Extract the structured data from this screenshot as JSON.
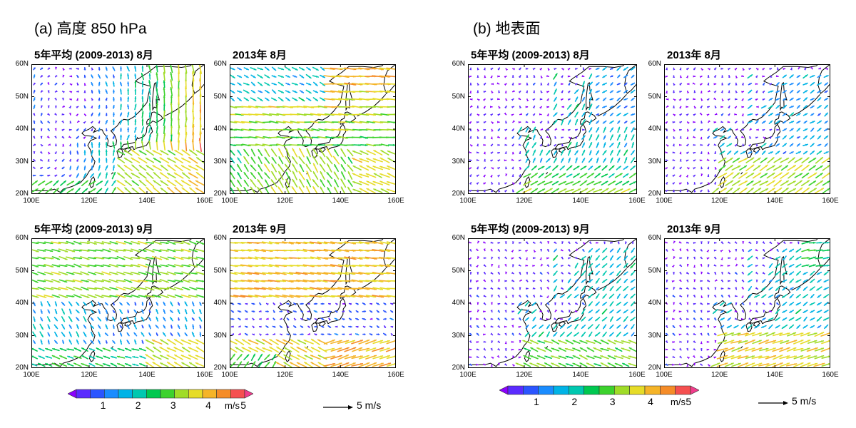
{
  "panels": [
    {
      "title": "(a) 高度 850 hPa",
      "maps": [
        {
          "title": "5年平均 (2009-2013) 8月"
        },
        {
          "title": "2013年 8月"
        },
        {
          "title": "5年平均 (2009-2013) 9月"
        },
        {
          "title": "2013年 9月"
        }
      ],
      "colorbar": {
        "ticks": [
          "1",
          "2",
          "3",
          "4",
          "5"
        ],
        "unit": "m/s"
      },
      "reference_vector": "5 m/s"
    },
    {
      "title": "(b) 地表面",
      "maps": [
        {
          "title": "5年平均 (2009-2013) 8月"
        },
        {
          "title": "2013年 8月"
        },
        {
          "title": "5年平均 (2009-2013) 9月"
        },
        {
          "title": "2013年 9月"
        }
      ],
      "colorbar": {
        "ticks": [
          "1",
          "2",
          "3",
          "4",
          "5"
        ],
        "unit": "m/s"
      },
      "reference_vector": "5 m/s"
    }
  ],
  "axes": {
    "lat_labels": [
      "60N",
      "50N",
      "40N",
      "30N",
      "20N"
    ],
    "lon_labels": [
      "100E",
      "120E",
      "140E",
      "160E"
    ]
  },
  "colorbar_colors": [
    "#8b00ff",
    "#5b2bff",
    "#2b55ff",
    "#1a8cff",
    "#00b3e6",
    "#00c8b0",
    "#00c850",
    "#3cd22d",
    "#a0dc28",
    "#e6dc28",
    "#f5b428",
    "#f58c28",
    "#f55050",
    "#f03c8c"
  ],
  "regimes": [
    "850_aug_avg",
    "850_aug_2013",
    "850_sep_avg",
    "850_sep_2013",
    "sfc_aug_avg",
    "sfc_aug_2013",
    "sfc_sep_avg",
    "sfc_sep_2013"
  ]
}
